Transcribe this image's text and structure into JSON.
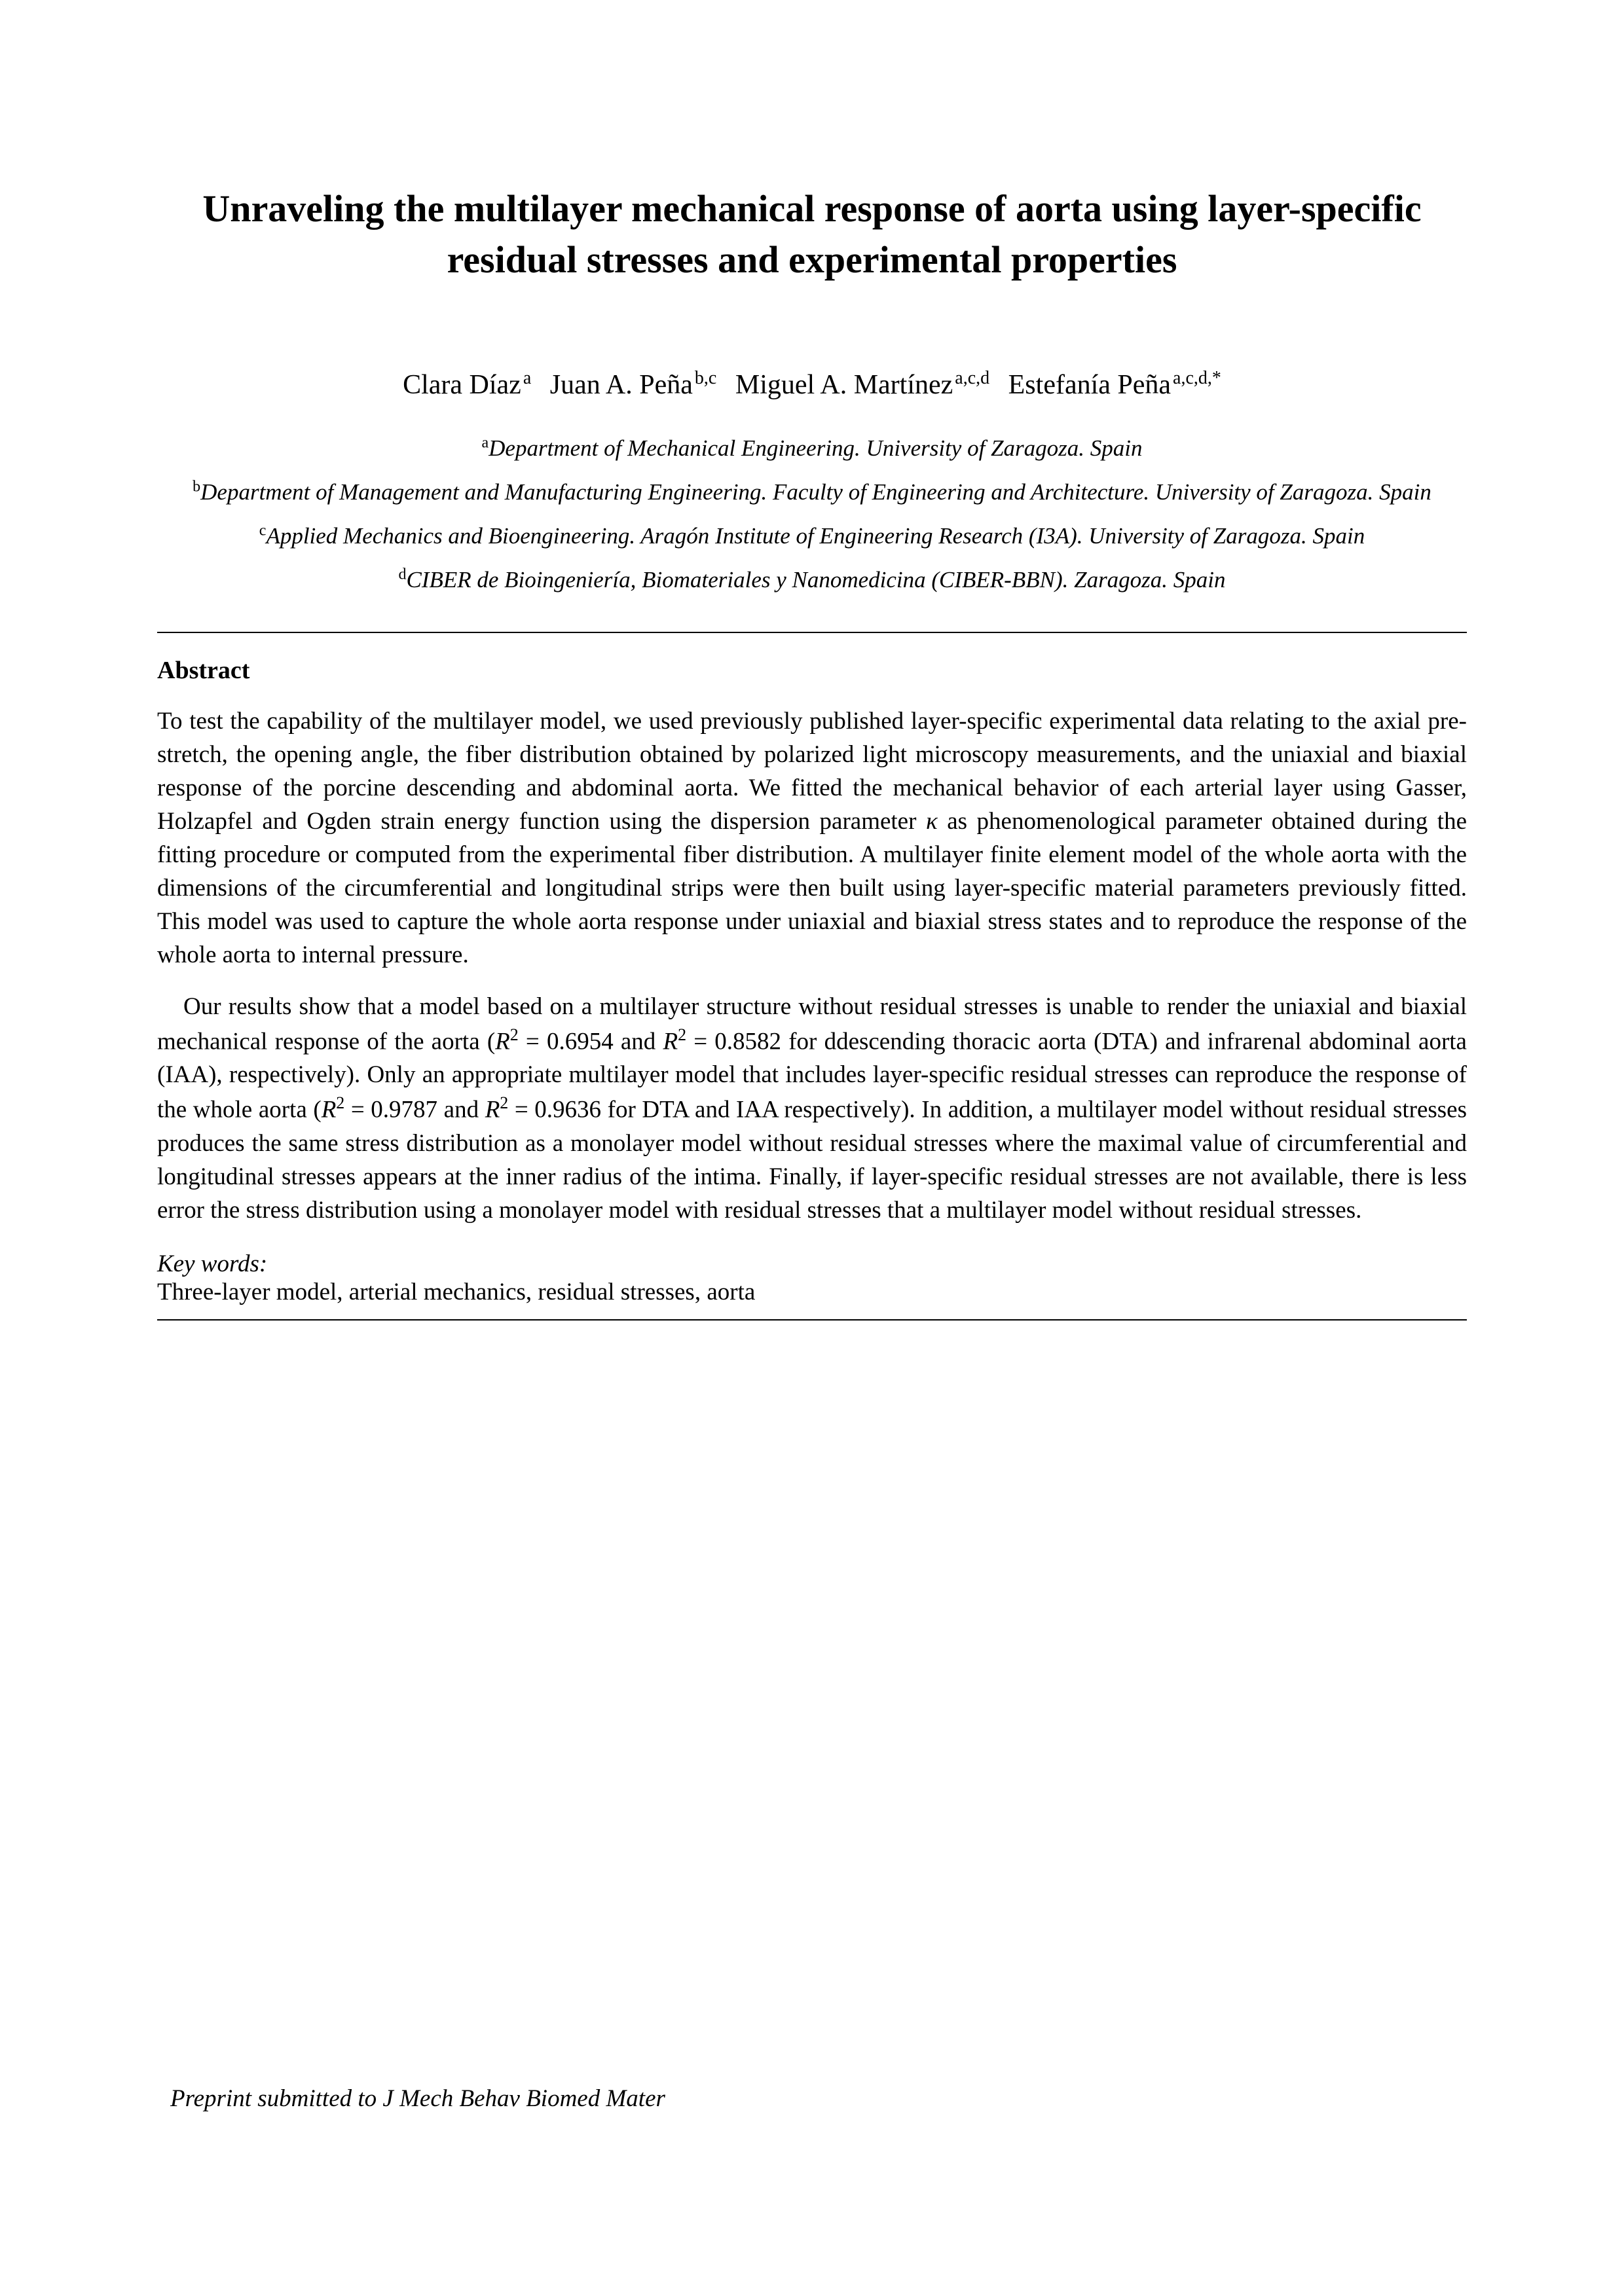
{
  "title": "Unraveling the multilayer mechanical response of aorta using layer-specific residual stresses and experimental properties",
  "authors": {
    "a1_name": "Clara Díaz",
    "a1_sup": "a",
    "a2_name": "Juan A. Peña",
    "a2_sup": "b,c",
    "a3_name": "Miguel A. Martínez",
    "a3_sup": "a,c,d",
    "a4_name": "Estefanía Peña",
    "a4_sup": "a,c,d,*"
  },
  "affiliations": {
    "a_sup": "a",
    "a_text": "Department of Mechanical Engineering. University of Zaragoza. Spain",
    "b_sup": "b",
    "b_text": "Department of Management and Manufacturing Engineering. Faculty of Engineering and Architecture. University of Zaragoza. Spain",
    "c_sup": "c",
    "c_text": "Applied Mechanics and Bioengineering. Aragón Institute of Engineering Research (I3A). University of Zaragoza. Spain",
    "d_sup": "d",
    "d_text": "CIBER de Bioingeniería, Biomateriales y Nanomedicina (CIBER-BBN). Zaragoza. Spain"
  },
  "abstract_label": "Abstract",
  "abstract_p1_part1": "To test the capability of the multilayer model, we used previously published layer-specific experimental data relating to the axial pre-stretch, the opening angle, the fiber distribution obtained by polarized light microscopy measurements, and the uniaxial and biaxial response of the porcine descending and abdominal aorta. We fitted the mechanical behavior of each arterial layer using Gasser, Holzapfel and Ogden strain energy function using the dispersion parameter ",
  "abstract_p1_kappa": "κ",
  "abstract_p1_part2": " as phenomenological parameter obtained during the fitting procedure or computed from the experimental fiber distribution. A multilayer finite element model of the whole aorta with the dimensions of the circumferential and longitudinal strips were then built using layer-specific material parameters previously fitted. This model was used to capture the whole aorta response under uniaxial and biaxial stress states and to reproduce the response of the whole aorta to internal pressure.",
  "abstract_p2_part1": "Our results show that a model based on a multilayer structure without residual stresses is unable to render the uniaxial and biaxial mechanical response of the aorta (",
  "abstract_p2_r1": "R",
  "abstract_p2_sup1": "2",
  "abstract_p2_eq1": " = 0.6954 and ",
  "abstract_p2_r2": "R",
  "abstract_p2_sup2": "2",
  "abstract_p2_part2": " = 0.8582 for ddescending thoracic aorta (DTA) and infrarenal abdominal aorta (IAA), respectively). Only an appropriate multilayer model that includes layer-specific residual stresses can reproduce the response of the whole aorta (",
  "abstract_p2_r3": "R",
  "abstract_p2_sup3": "2",
  "abstract_p2_eq2": " = 0.9787 and ",
  "abstract_p2_r4": "R",
  "abstract_p2_sup4": "2",
  "abstract_p2_part3": " = 0.9636 for DTA and IAA respectively). In addition, a multilayer model without residual stresses produces the same stress distribution as a monolayer model without residual stresses where the maximal value of circumferential and longitudinal stresses appears at the inner radius of the intima. Finally, if layer-specific residual stresses are not available, there is less error the stress distribution using a monolayer model with residual stresses that a multilayer model without residual stresses.",
  "keywords_label": "Key words:",
  "keywords_text": "Three-layer model, arterial mechanics, residual stresses, aorta",
  "footer": "Preprint submitted to J Mech Behav Biomed Mater"
}
